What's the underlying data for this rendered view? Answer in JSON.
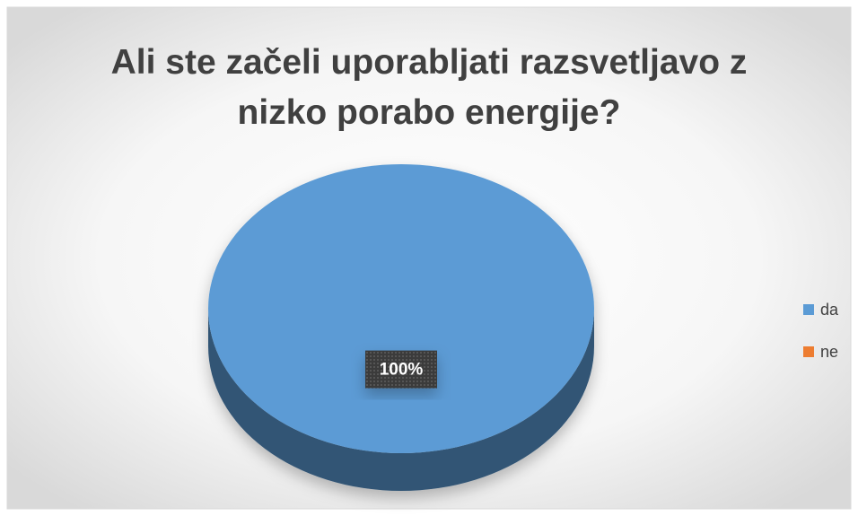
{
  "chart_data": {
    "type": "pie",
    "title": "Ali ste začeli uporabljati razsvetljavo z nizko porabo energije?",
    "categories": [
      "da",
      "ne"
    ],
    "values": [
      100,
      0
    ],
    "value_labels": [
      "100%",
      null
    ],
    "colors": [
      "#5b9bd5",
      "#ed7d31"
    ],
    "legend": "right"
  }
}
